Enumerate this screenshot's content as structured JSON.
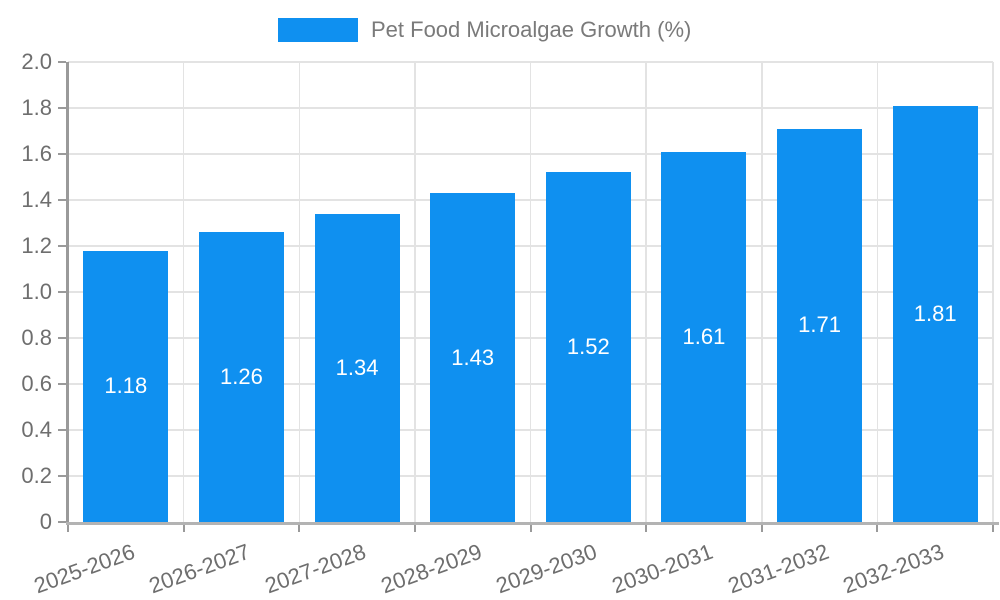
{
  "chart_data": {
    "type": "bar",
    "legend_label": "Pet Food Microalgae Growth (%)",
    "legend_position": "top-center",
    "title": "",
    "xlabel": "",
    "ylabel": "",
    "categories": [
      "2025-2026",
      "2026-2027",
      "2027-2028",
      "2028-2029",
      "2029-2030",
      "2030-2031",
      "2031-2032",
      "2032-2033"
    ],
    "values": [
      1.18,
      1.26,
      1.34,
      1.43,
      1.52,
      1.61,
      1.71,
      1.81
    ],
    "value_labels": [
      "1.18",
      "1.26",
      "1.34",
      "1.43",
      "1.52",
      "1.61",
      "1.71",
      "1.81"
    ],
    "ylim": [
      0,
      2.0
    ],
    "ytick_step": 0.2,
    "ytick_labels": [
      "0",
      "0.2",
      "0.4",
      "0.6",
      "0.8",
      "1.0",
      "1.2",
      "1.4",
      "1.6",
      "1.8",
      "2.0"
    ],
    "grid": true,
    "xtick_label_rotation_deg": 20,
    "colors": {
      "bar": "#0F90F0",
      "grid_line": "#e3e3e3",
      "axis_line": "#9a9a9a",
      "bottom_axis_line": "#b3b3b3",
      "tick_label": "#6e6e6e",
      "legend_text": "#7a7a7a",
      "bar_label": "#ffffff",
      "background": "#ffffff"
    }
  }
}
